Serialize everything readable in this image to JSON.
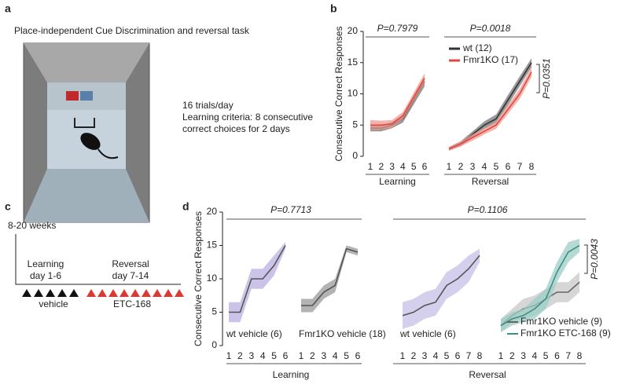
{
  "panel_labels": [
    "a",
    "b",
    "c",
    "d"
  ],
  "panel_a": {
    "title": "Place-independent Cue Discrimination and reversal task",
    "lines": [
      "16 trials/day",
      "Learning criteria: 8 consecutive",
      "correct choices for 2 days"
    ]
  },
  "panel_c": {
    "age": "8-20 weeks",
    "learning": "Learning",
    "learning_days": "day 1-6",
    "reversal": "Reversal",
    "reversal_days": "day 7-14",
    "learning_treatment": "vehicle",
    "reversal_treatment": "ETC-168"
  },
  "panel_d": {
    "learning_p": "P=0.7713",
    "reversal_p": "P=0.1106",
    "learning_label": "Learning",
    "reversal_label": "Reversal"
  },
  "chart_data": [
    {
      "type": "line",
      "ylabel": "Consecutive Correct Responses",
      "ylim": [
        0,
        20
      ],
      "yticks": [
        0,
        5,
        10,
        15,
        20
      ],
      "categories": [
        "1",
        "2",
        "3",
        "4",
        "5",
        "6"
      ],
      "title": "P=0.7979",
      "xlabel": "Learning",
      "series": [
        {
          "color": "#333333",
          "band_color": "#777777",
          "values": [
            4.5,
            4.5,
            5,
            6,
            9,
            12
          ],
          "errors": [
            0.5,
            0.5,
            0.5,
            0.6,
            0.7,
            0.8
          ]
        },
        {
          "color": "#e0483f",
          "band_color": "#f19a93",
          "values": [
            5,
            5,
            5.2,
            6.5,
            9.5,
            12.5
          ],
          "errors": [
            0.8,
            0.7,
            0.6,
            0.6,
            0.7,
            0.8
          ]
        }
      ]
    },
    {
      "type": "line",
      "ylim": [
        0,
        20
      ],
      "categories": [
        "1",
        "2",
        "3",
        "4",
        "5",
        "6",
        "7",
        "8"
      ],
      "title": "P=0.0018",
      "xlabel": "Reversal",
      "side_annotation": "P=0.0351",
      "legend": "upper left",
      "series": [
        {
          "name": "wt (12)",
          "color": "#333333",
          "band_color": "#777777",
          "values": [
            1.2,
            2,
            3.5,
            5,
            6,
            9,
            12,
            15
          ],
          "errors": [
            0.3,
            0.4,
            0.5,
            0.6,
            0.7,
            0.8,
            0.8,
            0.7
          ]
        },
        {
          "name": "Fmr1KO (17)",
          "color": "#e0483f",
          "band_color": "#f19a93",
          "values": [
            1.2,
            2,
            3,
            4,
            5,
            7.5,
            10,
            13.5
          ],
          "errors": [
            0.3,
            0.4,
            0.5,
            0.5,
            0.6,
            0.7,
            0.8,
            0.8
          ]
        }
      ]
    },
    {
      "type": "line",
      "ylabel": "Consecutive Correct Responses",
      "ylim": [
        0,
        20
      ],
      "yticks": [
        0,
        5,
        10,
        15,
        20
      ],
      "categories": [
        "1",
        "2",
        "3",
        "4",
        "5",
        "6"
      ],
      "series": [
        {
          "name": "wt vehicle (6)",
          "color": "#555555",
          "band_color": "#b9b0e0",
          "values": [
            5,
            5,
            10,
            10,
            12,
            15
          ],
          "errors": [
            1.5,
            1.5,
            1.5,
            1.5,
            1.5,
            0.5
          ]
        }
      ]
    },
    {
      "type": "line",
      "ylim": [
        0,
        20
      ],
      "categories": [
        "1",
        "2",
        "3",
        "4",
        "5",
        "6"
      ],
      "series": [
        {
          "name": "Fmr1KO vehicle (18)",
          "color": "#555555",
          "band_color": "#999999",
          "values": [
            6,
            6,
            8,
            9,
            14.5,
            14
          ],
          "errors": [
            1,
            1,
            1,
            1,
            0.5,
            0.5
          ]
        }
      ]
    },
    {
      "type": "line",
      "ylim": [
        0,
        20
      ],
      "categories": [
        "1",
        "2",
        "3",
        "4",
        "5",
        "6",
        "7",
        "8"
      ],
      "series": [
        {
          "name": "wt vehicle (6)",
          "color": "#555555",
          "band_color": "#c6bfe6",
          "values": [
            4.5,
            5,
            6,
            6.5,
            9,
            10,
            11.5,
            13.5
          ],
          "errors": [
            2,
            2,
            2,
            2,
            2,
            2,
            2,
            1
          ]
        }
      ]
    },
    {
      "type": "line",
      "ylim": [
        0,
        20
      ],
      "categories": [
        "1",
        "2",
        "3",
        "4",
        "5",
        "6",
        "7",
        "8"
      ],
      "side_annotation": "P=0.0043",
      "legend": "lower right",
      "series": [
        {
          "name": "Fmr1KO vehicle (9)",
          "color": "#666666",
          "band_color": "#c8c8c8",
          "values": [
            3,
            4.5,
            5.5,
            6,
            7,
            8,
            8,
            9.5
          ],
          "errors": [
            1,
            1,
            1.5,
            1.5,
            1.5,
            1.5,
            1.5,
            1.5
          ]
        },
        {
          "name": "Fmr1KO ETC-168 (9)",
          "color": "#3f8f86",
          "band_color": "#9ccdc6",
          "values": [
            3,
            4,
            4.5,
            5.5,
            7,
            11,
            14,
            15
          ],
          "errors": [
            1,
            1,
            1,
            1.5,
            1.5,
            1.5,
            1.5,
            1
          ]
        }
      ]
    }
  ]
}
